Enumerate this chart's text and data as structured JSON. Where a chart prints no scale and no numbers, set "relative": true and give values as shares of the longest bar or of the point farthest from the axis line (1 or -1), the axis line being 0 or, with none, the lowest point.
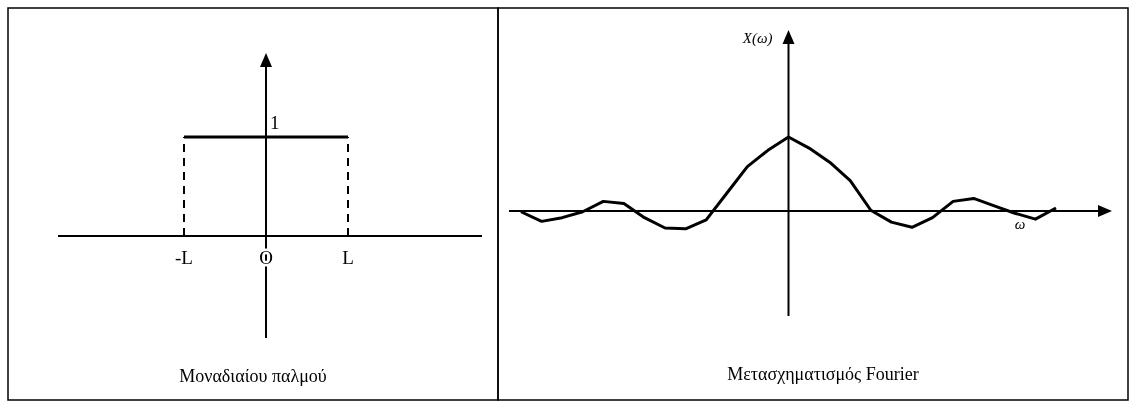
{
  "chart_data": [
    {
      "type": "line",
      "title": "Μοναδιαίου παλμού",
      "relative": true,
      "categories": [
        null,
        "-L",
        "O",
        "L",
        null
      ],
      "series": [
        {
          "color": "#000000",
          "values": [
            null,
            1,
            1,
            1,
            null
          ],
          "line_style": "solid"
        },
        {
          "color": "#000000",
          "x": [
            "-L",
            "-L"
          ],
          "values": [
            0,
            1
          ],
          "line_style": "dashed"
        },
        {
          "color": "#000000",
          "x": [
            "L",
            "L"
          ],
          "values": [
            0,
            1
          ],
          "line_style": "dashed"
        }
      ],
      "ref_lines": [
        {
          "axis": "x",
          "value": "O",
          "color": "#000000"
        }
      ],
      "annotations": [
        {
          "text": "1",
          "x": "O",
          "y": 1
        }
      ]
    },
    {
      "type": "line",
      "title": "Μετασχηματισμός Fourier",
      "xlabel": "ω",
      "ylabel": "X(ω)",
      "relative": true,
      "categories": [
        null,
        null,
        null,
        null,
        null,
        null,
        null,
        null,
        null,
        null,
        null,
        null,
        null,
        null,
        null,
        null,
        null,
        null,
        null,
        null,
        null,
        null,
        null,
        null,
        null,
        null,
        null
      ],
      "series": [
        {
          "color": "#000000",
          "values": [
            -0.01,
            -0.14,
            -0.09,
            -0.01,
            0.13,
            0.1,
            -0.09,
            -0.23,
            -0.24,
            -0.12,
            0.24,
            0.6,
            0.82,
            1,
            0.85,
            0.66,
            0.41,
            0.01,
            -0.15,
            -0.22,
            -0.09,
            0.13,
            0.17,
            0.07,
            -0.03,
            -0.11,
            0.04
          ]
        }
      ]
    }
  ]
}
